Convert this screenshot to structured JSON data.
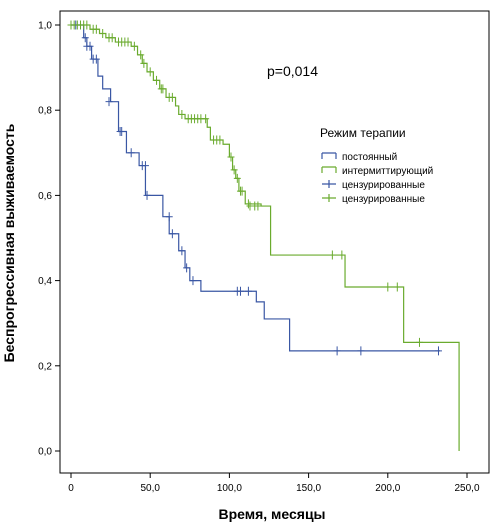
{
  "chart_data": {
    "type": "line",
    "subtype": "kaplan-meier",
    "xlabel": "Время, месяцы",
    "ylabel": "Беспрогрессивная выживаемость",
    "xlim": [
      0,
      250
    ],
    "ylim": [
      0,
      1
    ],
    "xticks": [
      "0",
      "50,0",
      "100,0",
      "150,0",
      "200,0",
      "250,0"
    ],
    "yticks": [
      "0,0",
      "0,2",
      "0,4",
      "0,6",
      "0,8",
      "1,0"
    ],
    "annotation": "p=0,014",
    "legend_title": "Режим терапии",
    "legend_position": "right",
    "grid": false,
    "series": [
      {
        "name": "постоянный",
        "color": "#3a57a4",
        "steps": [
          [
            0,
            1.0
          ],
          [
            8,
            0.97
          ],
          [
            10,
            0.95
          ],
          [
            13,
            0.92
          ],
          [
            17,
            0.88
          ],
          [
            20,
            0.85
          ],
          [
            25,
            0.82
          ],
          [
            30,
            0.75
          ],
          [
            35,
            0.7
          ],
          [
            43,
            0.67
          ],
          [
            47,
            0.6
          ],
          [
            58,
            0.55
          ],
          [
            62,
            0.51
          ],
          [
            68,
            0.47
          ],
          [
            72,
            0.43
          ],
          [
            75,
            0.4
          ],
          [
            82,
            0.375
          ],
          [
            117,
            0.35
          ],
          [
            122,
            0.31
          ],
          [
            138,
            0.235
          ],
          [
            233,
            0.235
          ]
        ],
        "censored": [
          [
            3,
            1.0
          ],
          [
            9,
            0.97
          ],
          [
            10,
            0.95
          ],
          [
            12,
            0.95
          ],
          [
            14,
            0.92
          ],
          [
            16,
            0.92
          ],
          [
            24,
            0.82
          ],
          [
            31,
            0.75
          ],
          [
            32,
            0.75
          ],
          [
            38,
            0.7
          ],
          [
            45,
            0.67
          ],
          [
            47,
            0.67
          ],
          [
            48,
            0.6
          ],
          [
            62,
            0.55
          ],
          [
            64,
            0.51
          ],
          [
            70,
            0.47
          ],
          [
            73,
            0.43
          ],
          [
            77,
            0.4
          ],
          [
            105,
            0.375
          ],
          [
            107,
            0.375
          ],
          [
            112,
            0.375
          ],
          [
            168,
            0.235
          ],
          [
            183,
            0.235
          ],
          [
            232,
            0.235
          ]
        ]
      },
      {
        "name": "интермиттирующий",
        "color": "#6aab2e",
        "steps": [
          [
            0,
            1.0
          ],
          [
            12,
            0.99
          ],
          [
            18,
            0.98
          ],
          [
            22,
            0.97
          ],
          [
            28,
            0.96
          ],
          [
            38,
            0.95
          ],
          [
            42,
            0.93
          ],
          [
            45,
            0.91
          ],
          [
            48,
            0.89
          ],
          [
            52,
            0.87
          ],
          [
            56,
            0.85
          ],
          [
            60,
            0.83
          ],
          [
            66,
            0.81
          ],
          [
            68,
            0.79
          ],
          [
            72,
            0.78
          ],
          [
            86,
            0.76
          ],
          [
            88,
            0.73
          ],
          [
            96,
            0.72
          ],
          [
            100,
            0.69
          ],
          [
            102,
            0.66
          ],
          [
            104,
            0.64
          ],
          [
            106,
            0.61
          ],
          [
            110,
            0.58
          ],
          [
            120,
            0.575
          ],
          [
            126,
            0.46
          ],
          [
            173,
            0.385
          ],
          [
            210,
            0.255
          ],
          [
            245,
            0.0
          ]
        ],
        "censored": [
          [
            0,
            1.0
          ],
          [
            2,
            1.0
          ],
          [
            4,
            1.0
          ],
          [
            6,
            1.0
          ],
          [
            8,
            1.0
          ],
          [
            10,
            1.0
          ],
          [
            14,
            0.99
          ],
          [
            16,
            0.99
          ],
          [
            20,
            0.98
          ],
          [
            24,
            0.97
          ],
          [
            26,
            0.97
          ],
          [
            30,
            0.96
          ],
          [
            32,
            0.96
          ],
          [
            34,
            0.96
          ],
          [
            36,
            0.96
          ],
          [
            40,
            0.95
          ],
          [
            44,
            0.93
          ],
          [
            46,
            0.91
          ],
          [
            50,
            0.89
          ],
          [
            54,
            0.87
          ],
          [
            57,
            0.85
          ],
          [
            58,
            0.85
          ],
          [
            62,
            0.83
          ],
          [
            64,
            0.83
          ],
          [
            70,
            0.79
          ],
          [
            74,
            0.78
          ],
          [
            76,
            0.78
          ],
          [
            78,
            0.78
          ],
          [
            80,
            0.78
          ],
          [
            82,
            0.78
          ],
          [
            85,
            0.78
          ],
          [
            90,
            0.73
          ],
          [
            92,
            0.73
          ],
          [
            94,
            0.73
          ],
          [
            101,
            0.69
          ],
          [
            103,
            0.66
          ],
          [
            105,
            0.64
          ],
          [
            107,
            0.61
          ],
          [
            108,
            0.61
          ],
          [
            112,
            0.58
          ],
          [
            113,
            0.575
          ],
          [
            116,
            0.575
          ],
          [
            118,
            0.575
          ],
          [
            165,
            0.46
          ],
          [
            171,
            0.46
          ],
          [
            200,
            0.385
          ],
          [
            206,
            0.385
          ],
          [
            220,
            0.255
          ]
        ]
      }
    ],
    "legend": [
      {
        "label": "постоянный",
        "kind": "line",
        "color": "#3a57a4"
      },
      {
        "label": "интермиттирующий",
        "kind": "line",
        "color": "#6aab2e"
      },
      {
        "label": "цензурированные",
        "kind": "cross",
        "color": "#3a57a4"
      },
      {
        "label": "цензурированные",
        "kind": "cross",
        "color": "#6aab2e"
      }
    ]
  }
}
